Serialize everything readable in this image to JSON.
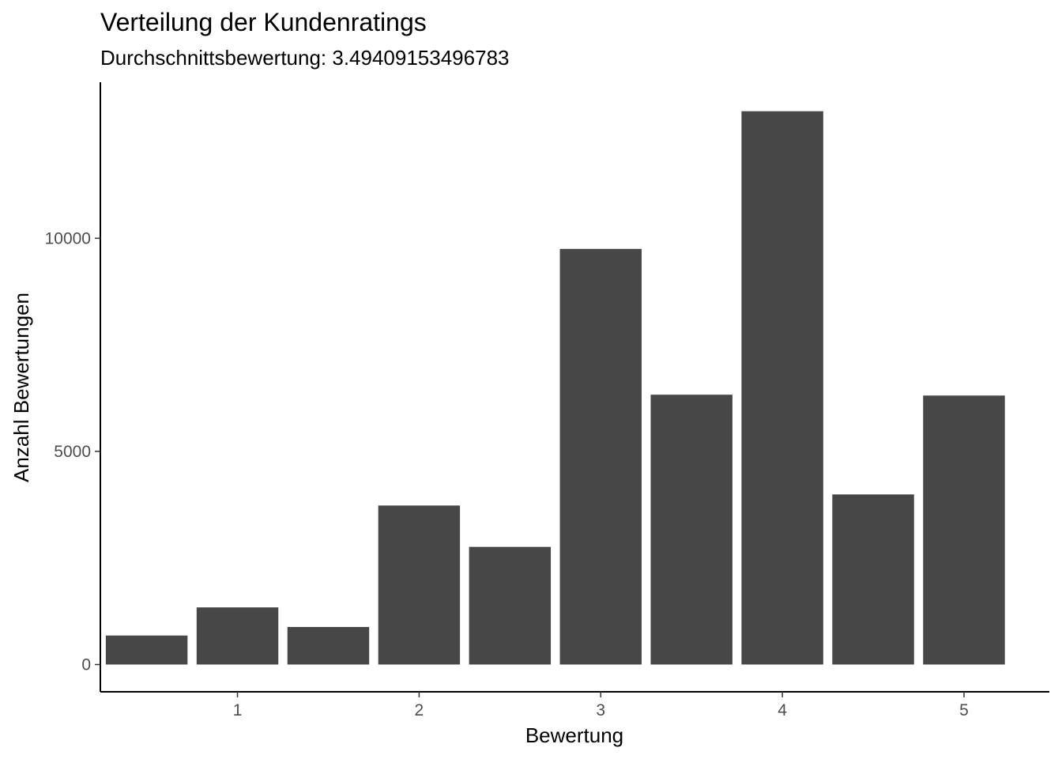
{
  "chart_data": {
    "type": "bar",
    "title": "Verteilung der Kundenratings",
    "subtitle": "Durchschnittsbewertung:  3.49409153496783",
    "xlabel": "Bewertung",
    "ylabel": "Anzahl Bewertungen",
    "x": [
      0.5,
      1.0,
      1.5,
      2.0,
      2.5,
      3.0,
      3.5,
      4.0,
      4.5,
      5.0
    ],
    "values": [
      680,
      1340,
      880,
      3730,
      2760,
      9750,
      6330,
      12980,
      3990,
      6310
    ],
    "bar_width": 0.45,
    "xlim": [
      0.245,
      5.47
    ],
    "ylim": [
      -640,
      13660
    ],
    "x_ticks": [
      1,
      2,
      3,
      4,
      5
    ],
    "x_tick_labels": [
      "1",
      "2",
      "3",
      "4",
      "5"
    ],
    "y_ticks": [
      0,
      5000,
      10000
    ],
    "y_tick_labels": [
      "0",
      "5000",
      "10000"
    ],
    "grid": false,
    "legend": "none",
    "colors": {
      "bar": "#474747",
      "axis": "#000000",
      "tick_label": "#4d4d4d",
      "background": "#ffffff"
    }
  }
}
